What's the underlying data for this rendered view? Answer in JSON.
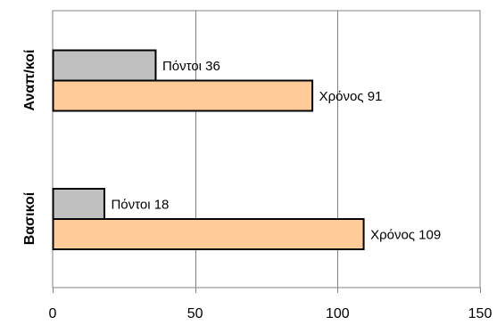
{
  "chart_data": {
    "type": "bar",
    "orientation": "horizontal",
    "categories": [
      "Αναπ/κοί",
      "Βασικοί"
    ],
    "series": [
      {
        "name": "Πόντοι",
        "values": [
          36,
          18
        ],
        "color": "#c0c0c0"
      },
      {
        "name": "Χρόνος",
        "values": [
          91,
          109
        ],
        "color": "#ffcc99"
      }
    ],
    "data_labels": [
      [
        "Πόντοι 36",
        "Χρόνος 91"
      ],
      [
        "Πόντοι 18",
        "Χρόνος 109"
      ]
    ],
    "xlim": [
      0,
      150
    ],
    "x_ticks": [
      0,
      50,
      100,
      150
    ],
    "grid": true,
    "legend": "none",
    "title": "",
    "xlabel": "",
    "ylabel": ""
  }
}
